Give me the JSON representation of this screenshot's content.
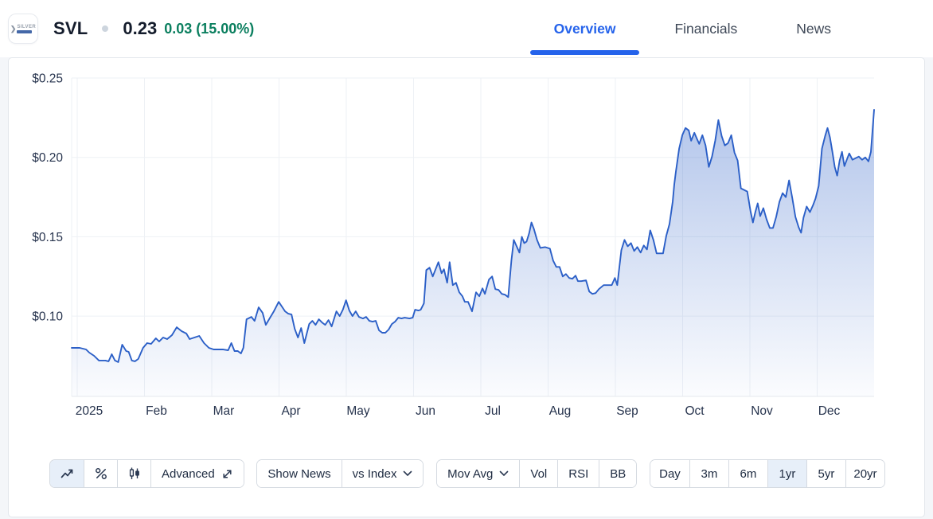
{
  "header": {
    "ticker": "SVL",
    "price": "0.23",
    "change": "0.03 (15.00%)",
    "logo": {
      "alt": "Silver Mines logo",
      "word": "SILVER"
    },
    "tabs": [
      {
        "label": "Overview",
        "active": true
      },
      {
        "label": "Financials",
        "active": false
      },
      {
        "label": "News",
        "active": false
      }
    ]
  },
  "colors": {
    "positive_change": "#0b7f5f",
    "tab_active": "#2563eb",
    "line": "#2b5fc7",
    "grid": "#eef1f5",
    "axis_text": "#26334d",
    "fill_top": "rgba(43,95,199,0.40)",
    "fill_bottom": "rgba(43,95,199,0.02)"
  },
  "chart_data": {
    "type": "area",
    "title": "SVL share price, 1 year (2025)",
    "x_labels": [
      "2025",
      "Feb",
      "Mar",
      "Apr",
      "May",
      "Jun",
      "Jul",
      "Aug",
      "Sep",
      "Oct",
      "Nov",
      "Dec"
    ],
    "y_ticks": [
      {
        "label": "$0.25",
        "value": 0.25
      },
      {
        "label": "$0.20",
        "value": 0.2
      },
      {
        "label": "$0.15",
        "value": 0.15
      },
      {
        "label": "$0.10",
        "value": 0.1
      }
    ],
    "y_range": [
      0.049,
      0.25
    ],
    "grid": true,
    "legend": "none",
    "points": [
      [
        0.0,
        0.08
      ],
      [
        0.01,
        0.08
      ],
      [
        0.018,
        0.079
      ],
      [
        0.022,
        0.077
      ],
      [
        0.028,
        0.075
      ],
      [
        0.034,
        0.072
      ],
      [
        0.042,
        0.072
      ],
      [
        0.046,
        0.0715
      ],
      [
        0.05,
        0.076
      ],
      [
        0.054,
        0.072
      ],
      [
        0.058,
        0.071
      ],
      [
        0.063,
        0.082
      ],
      [
        0.068,
        0.078
      ],
      [
        0.071,
        0.0775
      ],
      [
        0.075,
        0.072
      ],
      [
        0.079,
        0.0715
      ],
      [
        0.083,
        0.073
      ],
      [
        0.089,
        0.08
      ],
      [
        0.094,
        0.083
      ],
      [
        0.099,
        0.0825
      ],
      [
        0.105,
        0.086
      ],
      [
        0.109,
        0.084
      ],
      [
        0.114,
        0.0865
      ],
      [
        0.119,
        0.0855
      ],
      [
        0.125,
        0.088
      ],
      [
        0.131,
        0.093
      ],
      [
        0.137,
        0.0905
      ],
      [
        0.143,
        0.089
      ],
      [
        0.147,
        0.0855
      ],
      [
        0.153,
        0.0865
      ],
      [
        0.159,
        0.0875
      ],
      [
        0.165,
        0.083
      ],
      [
        0.171,
        0.08
      ],
      [
        0.177,
        0.079
      ],
      [
        0.183,
        0.079
      ],
      [
        0.189,
        0.079
      ],
      [
        0.195,
        0.0785
      ],
      [
        0.199,
        0.083
      ],
      [
        0.203,
        0.078
      ],
      [
        0.207,
        0.078
      ],
      [
        0.211,
        0.0765
      ],
      [
        0.214,
        0.08
      ],
      [
        0.218,
        0.098
      ],
      [
        0.224,
        0.0995
      ],
      [
        0.228,
        0.097
      ],
      [
        0.233,
        0.1055
      ],
      [
        0.238,
        0.102
      ],
      [
        0.242,
        0.0945
      ],
      [
        0.246,
        0.098
      ],
      [
        0.252,
        0.103
      ],
      [
        0.258,
        0.109
      ],
      [
        0.262,
        0.106
      ],
      [
        0.266,
        0.103
      ],
      [
        0.27,
        0.1015
      ],
      [
        0.274,
        0.101
      ],
      [
        0.278,
        0.092
      ],
      [
        0.282,
        0.0865
      ],
      [
        0.286,
        0.0925
      ],
      [
        0.29,
        0.083
      ],
      [
        0.296,
        0.095
      ],
      [
        0.3,
        0.097
      ],
      [
        0.304,
        0.0945
      ],
      [
        0.308,
        0.098
      ],
      [
        0.312,
        0.096
      ],
      [
        0.316,
        0.0945
      ],
      [
        0.32,
        0.0975
      ],
      [
        0.324,
        0.0935
      ],
      [
        0.33,
        0.103
      ],
      [
        0.334,
        0.1
      ],
      [
        0.338,
        0.104
      ],
      [
        0.342,
        0.11
      ],
      [
        0.346,
        0.1035
      ],
      [
        0.35,
        0.1
      ],
      [
        0.354,
        0.103
      ],
      [
        0.358,
        0.0995
      ],
      [
        0.363,
        0.0985
      ],
      [
        0.367,
        0.0995
      ],
      [
        0.371,
        0.097
      ],
      [
        0.375,
        0.0965
      ],
      [
        0.379,
        0.097
      ],
      [
        0.383,
        0.091
      ],
      [
        0.387,
        0.0895
      ],
      [
        0.391,
        0.0895
      ],
      [
        0.395,
        0.0915
      ],
      [
        0.399,
        0.095
      ],
      [
        0.403,
        0.0965
      ],
      [
        0.407,
        0.099
      ],
      [
        0.411,
        0.0985
      ],
      [
        0.415,
        0.099
      ],
      [
        0.421,
        0.0985
      ],
      [
        0.425,
        0.099
      ],
      [
        0.428,
        0.104
      ],
      [
        0.432,
        0.1035
      ],
      [
        0.435,
        0.104
      ],
      [
        0.439,
        0.108
      ],
      [
        0.442,
        0.129
      ],
      [
        0.446,
        0.1305
      ],
      [
        0.45,
        0.125
      ],
      [
        0.457,
        0.134
      ],
      [
        0.461,
        0.127
      ],
      [
        0.464,
        0.1295
      ],
      [
        0.468,
        0.121
      ],
      [
        0.471,
        0.134
      ],
      [
        0.475,
        0.1195
      ],
      [
        0.479,
        0.121
      ],
      [
        0.483,
        0.115
      ],
      [
        0.487,
        0.1125
      ],
      [
        0.49,
        0.109
      ],
      [
        0.494,
        0.109
      ],
      [
        0.499,
        0.103
      ],
      [
        0.504,
        0.115
      ],
      [
        0.508,
        0.1125
      ],
      [
        0.512,
        0.1175
      ],
      [
        0.515,
        0.114
      ],
      [
        0.52,
        0.123
      ],
      [
        0.524,
        0.125
      ],
      [
        0.528,
        0.117
      ],
      [
        0.532,
        0.1165
      ],
      [
        0.536,
        0.114
      ],
      [
        0.54,
        0.1135
      ],
      [
        0.544,
        0.112
      ],
      [
        0.548,
        0.135
      ],
      [
        0.551,
        0.148
      ],
      [
        0.555,
        0.1435
      ],
      [
        0.558,
        0.14
      ],
      [
        0.561,
        0.15
      ],
      [
        0.564,
        0.146
      ],
      [
        0.567,
        0.147
      ],
      [
        0.57,
        0.152
      ],
      [
        0.573,
        0.159
      ],
      [
        0.576,
        0.155
      ],
      [
        0.58,
        0.148
      ],
      [
        0.584,
        0.143
      ],
      [
        0.59,
        0.1435
      ],
      [
        0.596,
        0.1425
      ],
      [
        0.6,
        0.135
      ],
      [
        0.604,
        0.131
      ],
      [
        0.608,
        0.131
      ],
      [
        0.612,
        0.125
      ],
      [
        0.616,
        0.1265
      ],
      [
        0.62,
        0.124
      ],
      [
        0.624,
        0.1235
      ],
      [
        0.628,
        0.1255
      ],
      [
        0.631,
        0.122
      ],
      [
        0.635,
        0.122
      ],
      [
        0.641,
        0.1225
      ],
      [
        0.645,
        0.1155
      ],
      [
        0.649,
        0.114
      ],
      [
        0.653,
        0.1145
      ],
      [
        0.657,
        0.117
      ],
      [
        0.663,
        0.1195
      ],
      [
        0.669,
        0.1195
      ],
      [
        0.673,
        0.1195
      ],
      [
        0.677,
        0.124
      ],
      [
        0.68,
        0.1195
      ],
      [
        0.685,
        0.1415
      ],
      [
        0.689,
        0.148
      ],
      [
        0.693,
        0.144
      ],
      [
        0.697,
        0.146
      ],
      [
        0.701,
        0.141
      ],
      [
        0.705,
        0.1435
      ],
      [
        0.709,
        0.14
      ],
      [
        0.713,
        0.1445
      ],
      [
        0.717,
        0.142
      ],
      [
        0.721,
        0.154
      ],
      [
        0.725,
        0.148
      ],
      [
        0.729,
        0.1395
      ],
      [
        0.733,
        0.1395
      ],
      [
        0.737,
        0.1395
      ],
      [
        0.741,
        0.1505
      ],
      [
        0.745,
        0.158
      ],
      [
        0.749,
        0.172
      ],
      [
        0.751,
        0.183
      ],
      [
        0.753,
        0.191
      ],
      [
        0.757,
        0.2055
      ],
      [
        0.761,
        0.214
      ],
      [
        0.765,
        0.2185
      ],
      [
        0.769,
        0.217
      ],
      [
        0.772,
        0.2105
      ],
      [
        0.776,
        0.2155
      ],
      [
        0.779,
        0.212
      ],
      [
        0.782,
        0.2085
      ],
      [
        0.786,
        0.214
      ],
      [
        0.79,
        0.2075
      ],
      [
        0.794,
        0.194
      ],
      [
        0.798,
        0.2005
      ],
      [
        0.802,
        0.2105
      ],
      [
        0.806,
        0.2235
      ],
      [
        0.81,
        0.2135
      ],
      [
        0.814,
        0.2075
      ],
      [
        0.818,
        0.209
      ],
      [
        0.822,
        0.214
      ],
      [
        0.826,
        0.203
      ],
      [
        0.83,
        0.198
      ],
      [
        0.834,
        0.1805
      ],
      [
        0.838,
        0.1795
      ],
      [
        0.842,
        0.1785
      ],
      [
        0.846,
        0.166
      ],
      [
        0.849,
        0.159
      ],
      [
        0.852,
        0.1655
      ],
      [
        0.855,
        0.171
      ],
      [
        0.858,
        0.163
      ],
      [
        0.862,
        0.168
      ],
      [
        0.866,
        0.161
      ],
      [
        0.87,
        0.1555
      ],
      [
        0.874,
        0.1555
      ],
      [
        0.878,
        0.1625
      ],
      [
        0.882,
        0.172
      ],
      [
        0.886,
        0.1775
      ],
      [
        0.89,
        0.175
      ],
      [
        0.894,
        0.1855
      ],
      [
        0.898,
        0.1745
      ],
      [
        0.902,
        0.1625
      ],
      [
        0.906,
        0.156
      ],
      [
        0.909,
        0.1525
      ],
      [
        0.912,
        0.162
      ],
      [
        0.916,
        0.169
      ],
      [
        0.92,
        0.1655
      ],
      [
        0.924,
        0.17
      ],
      [
        0.927,
        0.174
      ],
      [
        0.931,
        0.182
      ],
      [
        0.935,
        0.2055
      ],
      [
        0.939,
        0.2135
      ],
      [
        0.942,
        0.2185
      ],
      [
        0.945,
        0.2125
      ],
      [
        0.948,
        0.2035
      ],
      [
        0.951,
        0.194
      ],
      [
        0.954,
        0.1885
      ],
      [
        0.957,
        0.198
      ],
      [
        0.96,
        0.2035
      ],
      [
        0.963,
        0.1945
      ],
      [
        0.966,
        0.1985
      ],
      [
        0.969,
        0.2025
      ],
      [
        0.973,
        0.1985
      ],
      [
        0.977,
        0.1995
      ],
      [
        0.981,
        0.2005
      ],
      [
        0.985,
        0.1985
      ],
      [
        0.989,
        0.2
      ],
      [
        0.993,
        0.1975
      ],
      [
        0.996,
        0.2035
      ],
      [
        1.0,
        0.23
      ]
    ]
  },
  "toolbar": {
    "chart_types": {
      "line": "line-chart",
      "percent": "percent-change",
      "candles": "candlestick"
    },
    "selected_chart_type": "line",
    "advanced_label": "Advanced",
    "show_news_label": "Show News",
    "vs_index_label": "vs Index",
    "mov_avg_label": "Mov Avg",
    "indicators": [
      "Vol",
      "RSI",
      "BB"
    ],
    "ranges": [
      "Day",
      "3m",
      "6m",
      "1yr",
      "5yr",
      "20yr"
    ],
    "active_range": "1yr"
  }
}
